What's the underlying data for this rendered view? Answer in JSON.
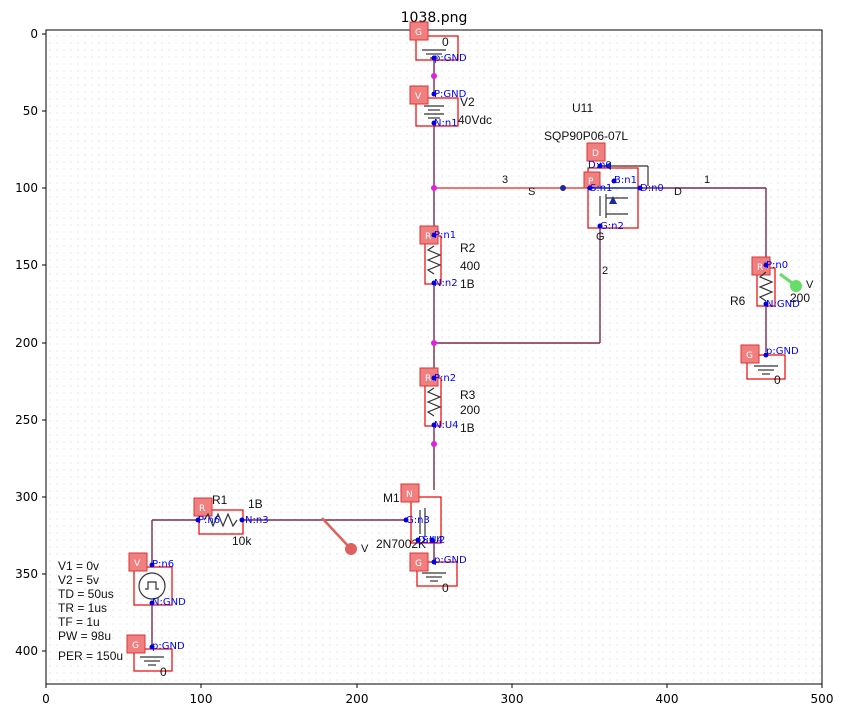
{
  "title": "1038.png",
  "axes": {
    "x_ticks": [
      "0",
      "100",
      "200",
      "300",
      "400",
      "500"
    ],
    "y_ticks": [
      "0",
      "50",
      "100",
      "150",
      "200",
      "250",
      "300",
      "350",
      "400"
    ]
  },
  "components": {
    "gnd_top": {
      "tag": "G",
      "pin": "p:GND",
      "value": "0"
    },
    "v2": {
      "tag": "V",
      "pin_p": "P:GND",
      "pin_n": "N:n1",
      "name": "V2",
      "value": "40Vdc"
    },
    "u11": {
      "name": "U11",
      "part": "SQP90P06-07L",
      "tag_d": "D",
      "tag_p": "P",
      "pin_d": "D:n0",
      "pin_s": "S:n1",
      "pin_b": "B:n1",
      "pin_d2": "D:n0",
      "pin_g": "G:n2",
      "label_s": "S",
      "label_g": "G",
      "label_d": "D"
    },
    "r2": {
      "tag": "R",
      "pin_p": "P:n1",
      "pin_n": "N:n2",
      "name": "R2",
      "value": "400",
      "sub": "1B"
    },
    "r3": {
      "tag": "R",
      "pin_p": "P:n2",
      "pin_n": "N:U4",
      "name": "R3",
      "value": "200",
      "sub": "1B"
    },
    "r6": {
      "tag": "R",
      "pin_p": "P:n0",
      "pin_n": "N:GND",
      "name": "R6",
      "value": "200",
      "marker": "V"
    },
    "gnd_r6": {
      "tag": "G",
      "pin": "p:GND",
      "value": "0"
    },
    "r1": {
      "tag": "R",
      "pin_p": "P:n6",
      "pin_n": "N:n3",
      "name": "R1",
      "value": "10k",
      "sub": "1B"
    },
    "m1": {
      "tag": "N",
      "name": "M1",
      "part": "2N7002K",
      "pin_g": "G:n3",
      "pin_d": "D:U4",
      "pin_s": "S:U2",
      "marker": "V"
    },
    "gnd_m1": {
      "tag": "G",
      "pin": "p:GND",
      "value": "0"
    },
    "v1": {
      "tag": "V",
      "pin_p": "P:n6",
      "pin_n": "N:GND",
      "params": [
        "V1 = 0v",
        "V2 = 5v",
        "TD = 50us",
        "TR = 1us",
        "TF = 1u",
        "PW = 98u",
        "PER = 150u"
      ]
    },
    "gnd_v1": {
      "tag": "G",
      "pin": "p:GND",
      "value": "0"
    }
  },
  "nets": {
    "n3_label": "3",
    "n1_label": "1",
    "n2_label": "2"
  }
}
